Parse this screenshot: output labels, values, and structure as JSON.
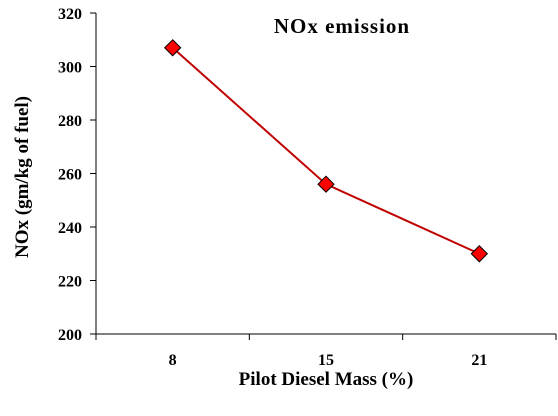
{
  "chart_data": {
    "type": "line",
    "title": "NOx emission",
    "xlabel": "Pilot Diesel Mass (%)",
    "ylabel": "NOx (gm/kg of fuel)",
    "categories": [
      "8",
      "15",
      "21"
    ],
    "ylim": [
      200,
      320
    ],
    "yticks": [
      200,
      220,
      240,
      260,
      280,
      300,
      320
    ],
    "grid": false,
    "series": [
      {
        "values": [
          307,
          256,
          230
        ],
        "color": "#c00000",
        "marker": "diamond",
        "marker_fill": "#ff0000"
      }
    ]
  }
}
